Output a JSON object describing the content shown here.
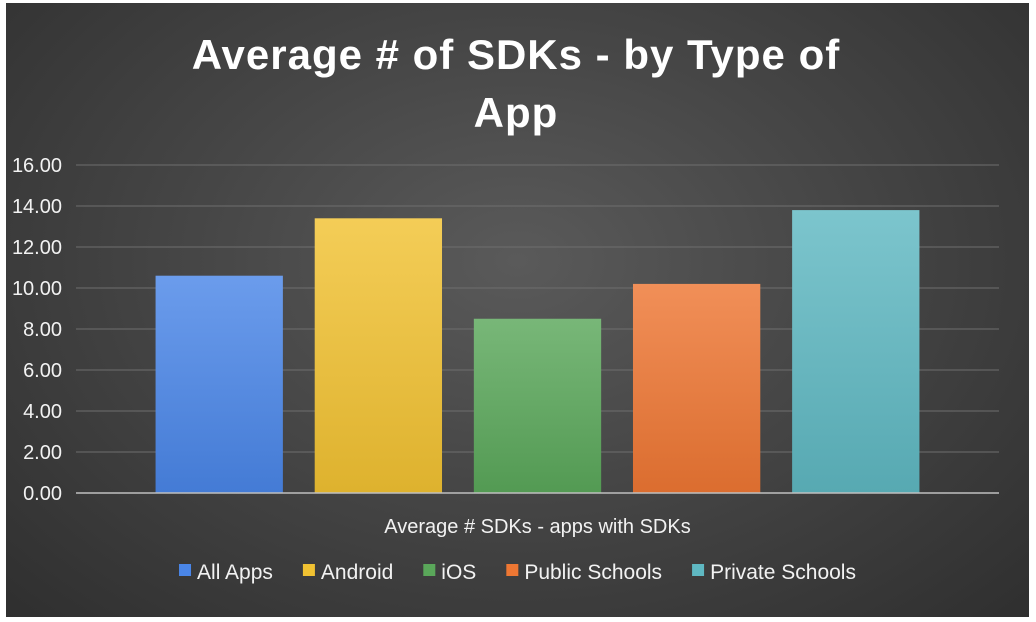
{
  "chart_data": {
    "type": "bar",
    "title": "Average # of SDKs - by Type of App",
    "title_lines": [
      "Average # of SDKs - by Type of",
      "App"
    ],
    "categories": [
      "Average # SDKs -  apps with SDKs"
    ],
    "series": [
      {
        "name": "All Apps",
        "values": [
          10.6
        ],
        "color": "#4a86e8"
      },
      {
        "name": "Android",
        "values": [
          13.4
        ],
        "color": "#f1c232"
      },
      {
        "name": "iOS",
        "values": [
          8.5
        ],
        "color": "#5aa75a"
      },
      {
        "name": "Public Schools",
        "values": [
          10.2
        ],
        "color": "#ee7733"
      },
      {
        "name": "Private Schools",
        "values": [
          13.8
        ],
        "color": "#5fb8c2"
      }
    ],
    "yticks": [
      "0.00",
      "2.00",
      "4.00",
      "6.00",
      "8.00",
      "10.00",
      "12.00",
      "14.00",
      "16.00"
    ],
    "ylim": [
      0,
      16
    ],
    "grid": true,
    "legend_position": "bottom"
  }
}
